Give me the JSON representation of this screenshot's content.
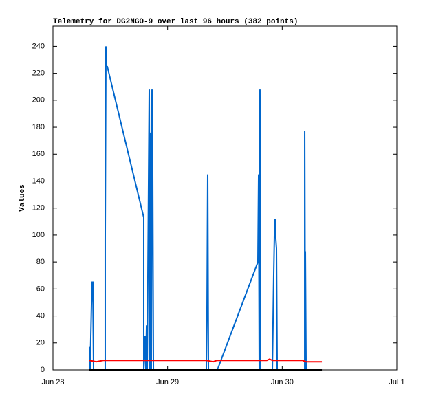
{
  "chart_data": {
    "type": "line",
    "title": "Telemetry for DG2NGO-9 over last 96 hours (382 points)",
    "y_label": "Values",
    "xlim": [
      0,
      72
    ],
    "xticks": [
      {
        "value": 0,
        "label": "Jun 28"
      },
      {
        "value": 24,
        "label": "Jun 29"
      },
      {
        "value": 48,
        "label": "Jun 30"
      },
      {
        "value": 72,
        "label": "Jul 1"
      }
    ],
    "ylim": [
      0,
      255
    ],
    "yticks": [
      0,
      20,
      40,
      60,
      80,
      100,
      120,
      140,
      160,
      180,
      200,
      220,
      240
    ],
    "series": [
      {
        "color": "#0066cc",
        "x": [
          7.63,
          7.63,
          7.78,
          8.06,
          8.21,
          8.35,
          8.5,
          10.94,
          10.94,
          11.09,
          11.23,
          11.38,
          19.01,
          19.01,
          19.3,
          19.44,
          19.59,
          19.73,
          20.16,
          20.3,
          20.45,
          20.59,
          20.74,
          20.88,
          21.03,
          32.11,
          32.26,
          32.4,
          32.55,
          34.42,
          42.91,
          43.06,
          43.2,
          43.34,
          43.49,
          45.94,
          46.22,
          46.37,
          46.51,
          46.66,
          46.8,
          46.95,
          52.71,
          52.71,
          52.85,
          52.85,
          53.0
        ],
        "values": [
          0,
          17,
          0,
          48,
          65,
          65,
          0,
          0,
          97,
          240,
          225,
          225,
          113,
          0,
          25,
          0,
          33,
          0,
          208,
          0,
          176,
          0,
          208,
          145,
          0,
          0,
          48,
          145,
          0,
          0,
          80,
          145,
          0,
          208,
          0,
          0,
          70,
          100,
          112,
          97,
          90,
          0,
          0,
          177,
          0,
          88,
          0
        ]
      },
      {
        "color": "#ff0000",
        "x": [
          7.63,
          9.07,
          10.51,
          32.11,
          33.55,
          34.27,
          44.78,
          45.36,
          45.94,
          52.27,
          52.99,
          56.31
        ],
        "values": [
          7,
          6,
          7,
          7,
          6,
          7,
          7,
          8,
          7,
          7,
          6,
          6
        ]
      },
      {
        "color": "#000000",
        "x": [
          7.63,
          56.31
        ],
        "values": [
          0,
          0
        ]
      }
    ]
  }
}
